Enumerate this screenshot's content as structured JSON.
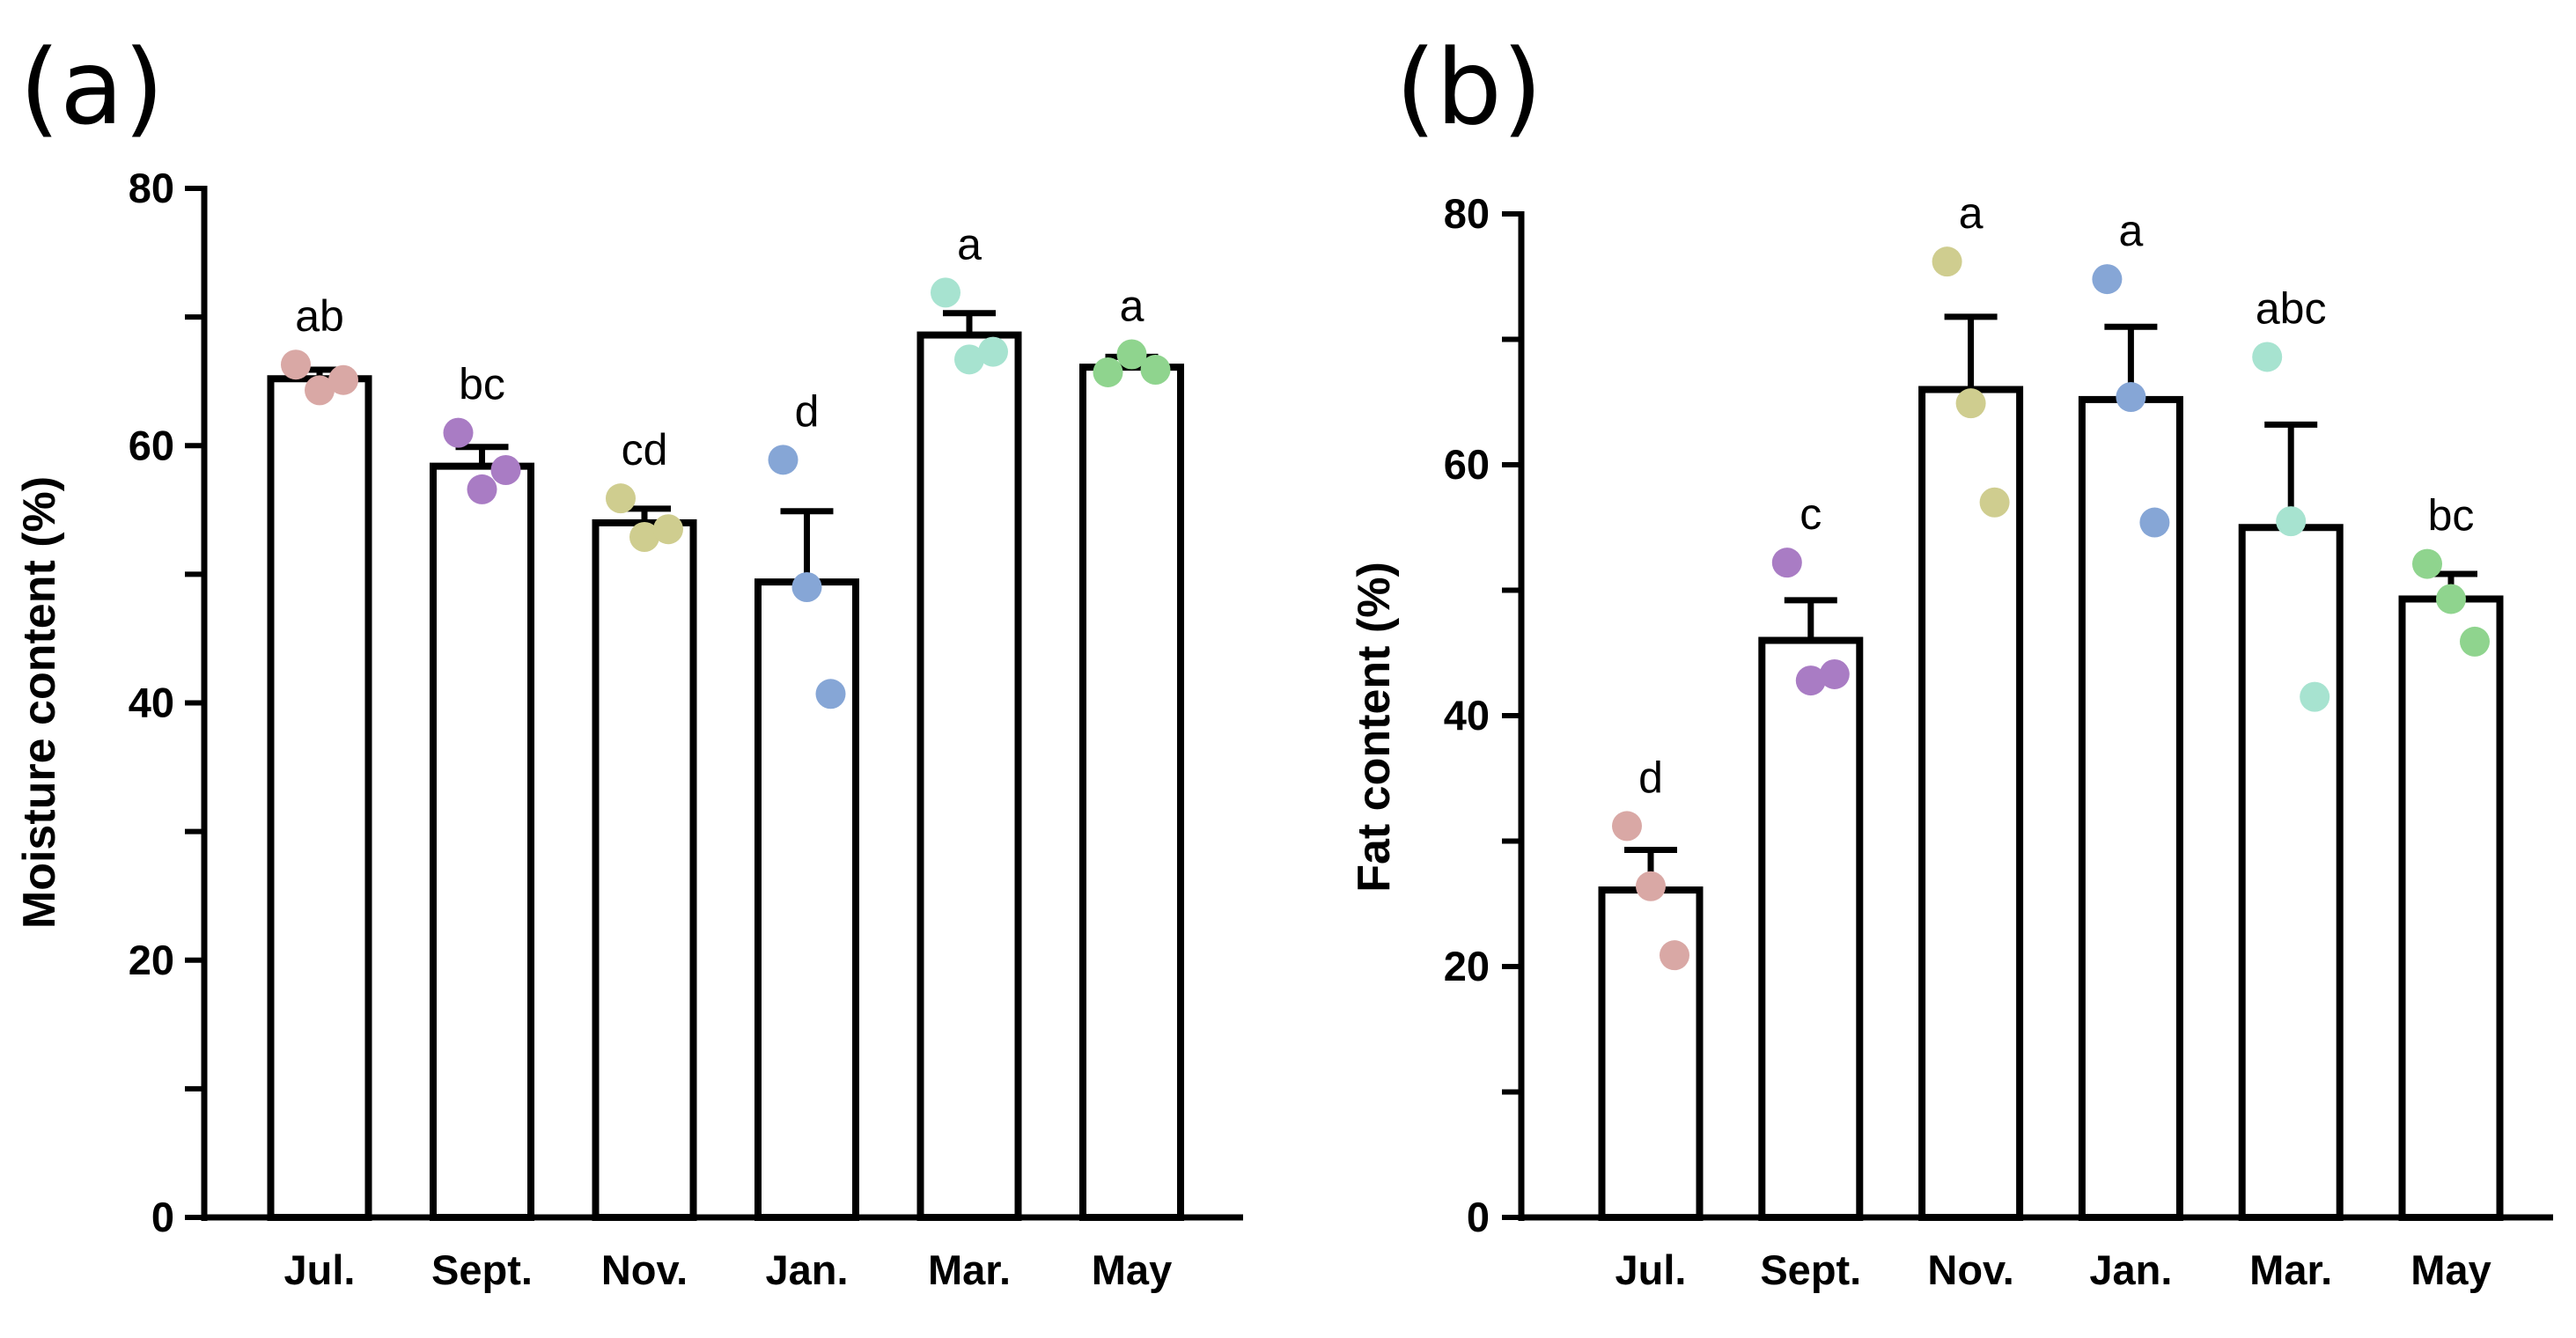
{
  "chart_data": [
    {
      "type": "bar",
      "panel_label": "(a)",
      "ylabel": "Moisture content (%)",
      "xlabel": "",
      "ylim": [
        0,
        80
      ],
      "yticks": [
        "0",
        "20",
        "40",
        "60",
        "80"
      ],
      "categories": [
        "Jul.",
        "Sept.",
        "Nov.",
        "Jan.",
        "Mar.",
        "May"
      ],
      "values": [
        65.2,
        58.4,
        54.0,
        49.4,
        68.6,
        66.1
      ],
      "errors": [
        0.7,
        1.5,
        1.1,
        5.5,
        1.7,
        0.8
      ],
      "significance": [
        "ab",
        "bc",
        "cd",
        "d",
        "a",
        "a"
      ],
      "points": [
        [
          66.3,
          64.3,
          65.1
        ],
        [
          61.0,
          56.6,
          58.1
        ],
        [
          55.9,
          52.9,
          53.5
        ],
        [
          58.9,
          49.0,
          40.7
        ],
        [
          71.9,
          66.7,
          67.3
        ],
        [
          65.7,
          67.1,
          65.9
        ]
      ],
      "point_colors": [
        "#d9a8a5",
        "#a97cc4",
        "#cfcd8f",
        "#86a6d6",
        "#a7e3d0",
        "#8fd48e"
      ]
    },
    {
      "type": "bar",
      "panel_label": "(b)",
      "ylabel": "Fat content (%)",
      "xlabel": "",
      "ylim": [
        0,
        80
      ],
      "yticks": [
        "0",
        "20",
        "40",
        "60",
        "80"
      ],
      "categories": [
        "Jul.",
        "Sept.",
        "Nov.",
        "Jan.",
        "Mar.",
        "May"
      ],
      "values": [
        26.1,
        46.0,
        66.0,
        65.2,
        55.0,
        49.3
      ],
      "errors": [
        3.2,
        3.2,
        5.8,
        5.8,
        8.2,
        2.0
      ],
      "significance": [
        "d",
        "c",
        "a",
        "a",
        "abc",
        "bc"
      ],
      "points": [
        [
          31.2,
          26.4,
          20.9
        ],
        [
          52.2,
          42.8,
          43.3
        ],
        [
          76.2,
          64.9,
          57.0
        ],
        [
          74.8,
          65.4,
          55.4
        ],
        [
          68.6,
          55.5,
          41.5
        ],
        [
          52.1,
          49.3,
          45.9
        ]
      ],
      "point_colors": [
        "#d9a8a5",
        "#a97cc4",
        "#cfcd8f",
        "#86a6d6",
        "#a7e3d0",
        "#8fd48e"
      ]
    }
  ]
}
